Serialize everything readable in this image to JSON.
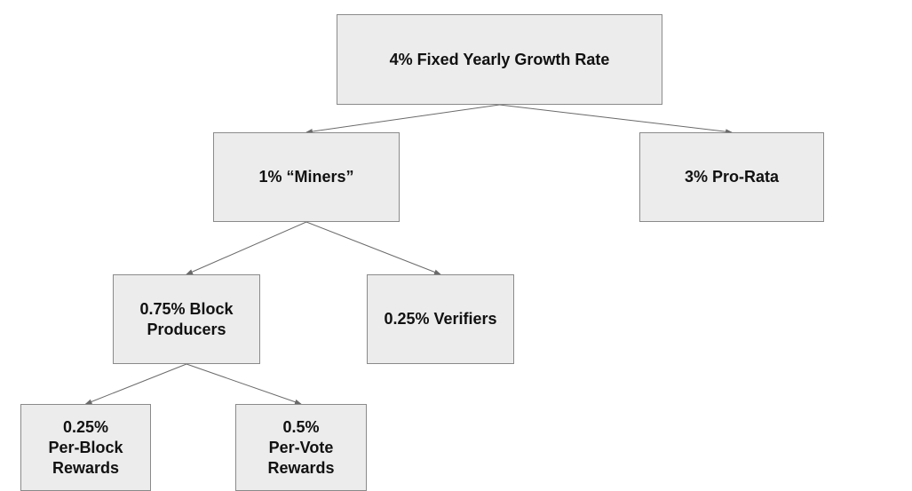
{
  "diagram": {
    "nodes": {
      "root": "4% Fixed Yearly Growth Rate",
      "miners": "1% “Miners”",
      "prorata": "3% Pro-Rata",
      "block_producers": "0.75% Block\nProducers",
      "verifiers": "0.25% Verifiers",
      "per_block": "0.25%\nPer-Block\nRewards",
      "per_vote": "0.5%\nPer-Vote\nRewards"
    },
    "edges": [
      {
        "from": "root",
        "to": "miners"
      },
      {
        "from": "root",
        "to": "prorata"
      },
      {
        "from": "miners",
        "to": "block_producers"
      },
      {
        "from": "miners",
        "to": "verifiers"
      },
      {
        "from": "block_producers",
        "to": "per_block"
      },
      {
        "from": "block_producers",
        "to": "per_vote"
      }
    ]
  }
}
